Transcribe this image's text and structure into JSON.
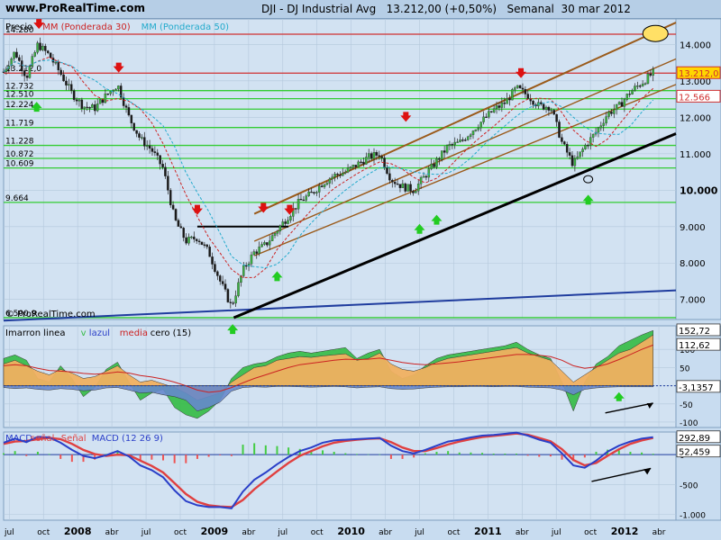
{
  "header": {
    "site": "www.ProRealTime.com",
    "ticker": "DJI - DJ Industrial Avg",
    "quote": "13.212,00 (+0,50%)",
    "period": "Semanal",
    "date": "30 mar 2012",
    "watermark": "© ProRealTime.com"
  },
  "colors": {
    "background": "#c8dcf0",
    "panel": "#ccdff0",
    "price_up": "#3cb043",
    "price_down": "#1a1a1a",
    "ma30": "#cc2222",
    "ma50": "#22aacc",
    "support_line": "#000000",
    "long_line": "#1f3c9e",
    "channel": "#9a5a1a",
    "resistance": "#d03030",
    "horizontal": "#33cc33",
    "arrow_up": "#22cc22",
    "arrow_down": "#dd1111",
    "volume_area": "#f0b060",
    "volume_green": "#33bb44",
    "volume_blue": "#6688cc",
    "macd_line": "#2a3fc8",
    "signal_line": "#e04040",
    "histogram_pos": "#44cc44",
    "histogram_neg": "#ee5555"
  },
  "chart_data": [
    {
      "type": "candlestick",
      "panel": "price",
      "legend": [
        {
          "label": "Precio",
          "color": "#000000"
        },
        {
          "label": "MM (Ponderada 30)",
          "color": "#cc2222"
        },
        {
          "label": "MM (Ponderada 50)",
          "color": "#22aacc"
        }
      ],
      "x_ticks": [
        {
          "label": "jul",
          "t": 0.5
        },
        {
          "label": "oct",
          "t": 3.5
        },
        {
          "label": "2008",
          "t": 6.5
        },
        {
          "label": "abr",
          "t": 9.5
        },
        {
          "label": "jul",
          "t": 12.5
        },
        {
          "label": "oct",
          "t": 15.5
        },
        {
          "label": "2009",
          "t": 18.5
        },
        {
          "label": "abr",
          "t": 21.5
        },
        {
          "label": "jul",
          "t": 24.5
        },
        {
          "label": "oct",
          "t": 27.5
        },
        {
          "label": "2010",
          "t": 30.5
        },
        {
          "label": "abr",
          "t": 33.5
        },
        {
          "label": "jul",
          "t": 36.5
        },
        {
          "label": "oct",
          "t": 39.5
        },
        {
          "label": "2011",
          "t": 42.5
        },
        {
          "label": "abr",
          "t": 45.5
        },
        {
          "label": "jul",
          "t": 48.5
        },
        {
          "label": "oct",
          "t": 51.5
        },
        {
          "label": "2012",
          "t": 54.5
        },
        {
          "label": "abr",
          "t": 57.5
        }
      ],
      "x_bold_ticks": [
        "2008",
        "2009",
        "2010",
        "2011",
        "2012"
      ],
      "x_range_months": [
        0,
        59
      ],
      "y_ticks": [
        7000,
        8000,
        9000,
        10000,
        11000,
        12000,
        13000,
        14000
      ],
      "y_tick_labels": [
        "7.000",
        "8.000",
        "9.000",
        "10.000",
        "11.000",
        "12.000",
        "13.000",
        "14.000"
      ],
      "y_range": [
        6450,
        14700
      ],
      "price_path_months": [
        0,
        1,
        2,
        3,
        4,
        5,
        6,
        7,
        8,
        9,
        10,
        11,
        12,
        13,
        14,
        15,
        16,
        17,
        18,
        19,
        20,
        21,
        22,
        23,
        24,
        25,
        26,
        27,
        28,
        29,
        30,
        31,
        32,
        33,
        34,
        35,
        36,
        37,
        38,
        39,
        40,
        41,
        42,
        43,
        44,
        45,
        46,
        47,
        48,
        49,
        50,
        51,
        52,
        53,
        54,
        55,
        56,
        57
      ],
      "price_path_values": [
        13250,
        13800,
        13100,
        14000,
        13700,
        13200,
        12650,
        12300,
        12250,
        12600,
        12900,
        12000,
        11400,
        11100,
        10600,
        9200,
        8600,
        8700,
        8300,
        7500,
        6800,
        7800,
        8300,
        8500,
        8900,
        9300,
        9700,
        9900,
        10200,
        10400,
        10500,
        10700,
        10900,
        11000,
        10300,
        10100,
        10000,
        10400,
        10800,
        11200,
        11300,
        11600,
        11900,
        12200,
        12400,
        12800,
        12600,
        12300,
        12300,
        11300,
        10700,
        11200,
        11600,
        12100,
        12300,
        12700,
        12950,
        13212
      ],
      "horizontal_levels": [
        {
          "value": 14280,
          "label": "14.280",
          "color": "#d03030"
        },
        {
          "value": 13212,
          "label": "13.212,0",
          "color": "#d03030"
        },
        {
          "value": 12732,
          "label": "12.732",
          "color": "#33cc33"
        },
        {
          "value": 12510,
          "label": "12.510",
          "color": "#33cc33"
        },
        {
          "value": 12224,
          "label": "12.224",
          "color": "#33cc33"
        },
        {
          "value": 11719,
          "label": "11.719",
          "color": "#33cc33"
        },
        {
          "value": 11228,
          "label": "11.228",
          "color": "#33cc33"
        },
        {
          "value": 10872,
          "label": "10.872",
          "color": "#33cc33"
        },
        {
          "value": 10609,
          "label": "10.609",
          "color": "#33cc33"
        },
        {
          "value": 9664,
          "label": "9.664",
          "color": "#33cc33"
        },
        {
          "value": 6500.9,
          "label": "6.500,9",
          "color": "#33cc33"
        }
      ],
      "right_labels": [
        {
          "value": 13212,
          "label": "13.212,0",
          "bg": "#ffd700"
        },
        {
          "value": 12566,
          "label": "12.566",
          "bg": "#ffffff"
        }
      ],
      "arrows_down": [
        {
          "t": 3.1,
          "value": 14500
        },
        {
          "t": 10.1,
          "value": 13300
        },
        {
          "t": 17.0,
          "value": 9400
        },
        {
          "t": 22.8,
          "value": 9450
        },
        {
          "t": 25.1,
          "value": 9400
        },
        {
          "t": 35.3,
          "value": 11950
        },
        {
          "t": 45.4,
          "value": 13150
        }
      ],
      "arrows_up": [
        {
          "t": 2.9,
          "value": 12350
        },
        {
          "t": 20.1,
          "value": 6250
        },
        {
          "t": 24.0,
          "value": 7700
        },
        {
          "t": 36.5,
          "value": 9000
        },
        {
          "t": 38.0,
          "value": 9250
        },
        {
          "t": 51.3,
          "value": 9800
        }
      ]
    },
    {
      "type": "area",
      "panel": "indicator",
      "title": "Imarron linea",
      "legend": [
        {
          "label": "Imarron linea",
          "color": "#000000"
        },
        {
          "label": "v",
          "color": "#33bb44"
        },
        {
          "label": "lazul",
          "color": "#2a3fc8"
        },
        {
          "label": "media",
          "color": "#cc2222"
        },
        {
          "label": "cero (15)",
          "color": "#000000"
        }
      ],
      "y_ticks": [
        100,
        50,
        0,
        -50,
        -100
      ],
      "y_tick_labels": [
        "100",
        "50",
        "0",
        "-50",
        "-100"
      ],
      "y_range": [
        -115,
        165
      ],
      "right_labels": [
        {
          "value": 152.72,
          "label": "152,72",
          "bg": "#ffffff"
        },
        {
          "value": 112.62,
          "label": "112,62",
          "bg": "#ffffff"
        },
        {
          "value": -3.1357,
          "label": "-3,1357",
          "bg": "#ffffff"
        }
      ],
      "orange_values": [
        60,
        70,
        55,
        40,
        30,
        45,
        35,
        20,
        25,
        40,
        55,
        30,
        10,
        15,
        5,
        -5,
        -20,
        -40,
        -30,
        -20,
        10,
        30,
        50,
        55,
        70,
        75,
        80,
        78,
        82,
        85,
        88,
        70,
        75,
        90,
        60,
        45,
        40,
        50,
        65,
        75,
        80,
        85,
        90,
        95,
        100,
        105,
        90,
        80,
        70,
        40,
        10,
        30,
        50,
        70,
        90,
        100,
        120,
        140
      ],
      "green_values": [
        75,
        85,
        70,
        20,
        10,
        55,
        20,
        -30,
        -5,
        45,
        65,
        10,
        -40,
        -20,
        -10,
        -60,
        -80,
        -90,
        -70,
        -40,
        20,
        50,
        60,
        65,
        80,
        90,
        95,
        90,
        95,
        100,
        105,
        75,
        90,
        100,
        40,
        20,
        30,
        55,
        75,
        85,
        90,
        95,
        100,
        105,
        110,
        120,
        100,
        85,
        75,
        10,
        -70,
        10,
        60,
        80,
        110,
        125,
        140,
        152
      ],
      "blue_values": [
        -5,
        -8,
        -6,
        -10,
        -12,
        -8,
        -10,
        -14,
        -12,
        -6,
        -5,
        -12,
        -20,
        -18,
        -25,
        -30,
        -40,
        -70,
        -60,
        -45,
        -15,
        -5,
        -3,
        -4,
        -2,
        -2,
        -3,
        -4,
        -3,
        -2,
        -3,
        -6,
        -4,
        -3,
        -8,
        -10,
        -9,
        -6,
        -4,
        -3,
        -3,
        -2,
        -2,
        -3,
        -2,
        -2,
        -4,
        -5,
        -6,
        -12,
        -25,
        -10,
        -6,
        -4,
        -3,
        -3,
        -3,
        -3
      ],
      "red_values": [
        55,
        58,
        55,
        48,
        42,
        40,
        38,
        34,
        32,
        34,
        38,
        35,
        28,
        24,
        18,
        10,
        0,
        -12,
        -18,
        -15,
        -5,
        8,
        20,
        30,
        40,
        50,
        58,
        62,
        66,
        70,
        73,
        72,
        73,
        76,
        70,
        64,
        60,
        58,
        60,
        63,
        66,
        70,
        74,
        78,
        82,
        86,
        86,
        84,
        80,
        70,
        55,
        48,
        52,
        60,
        72,
        86,
        100,
        112
      ]
    },
    {
      "type": "line",
      "panel": "macd",
      "title": "MACD (12 26 9)",
      "legend": [
        {
          "label": "MACD",
          "color": "#2a3fc8"
        },
        {
          "label": "señal",
          "color": "#e04040"
        },
        {
          "label": "Señal",
          "color": "#e04040"
        },
        {
          "label": "MACD (12 26 9)",
          "color": "#2a3fc8"
        }
      ],
      "y_ticks": [
        0,
        -500,
        -1000
      ],
      "y_tick_labels": [
        "0",
        "-500",
        "-1.000"
      ],
      "y_range": [
        -1100,
        380
      ],
      "right_labels": [
        {
          "value": 292.89,
          "label": "292,89",
          "bg": "#ffffff"
        },
        {
          "value": 52.459,
          "label": "52,459",
          "bg": "#ffffff"
        }
      ],
      "macd_values": [
        200,
        270,
        210,
        300,
        290,
        200,
        80,
        -20,
        -60,
        -10,
        60,
        -30,
        -180,
        -260,
        -380,
        -600,
        -780,
        -850,
        -880,
        -880,
        -900,
        -620,
        -420,
        -300,
        -160,
        -40,
        60,
        120,
        200,
        240,
        250,
        260,
        270,
        280,
        150,
        60,
        20,
        80,
        150,
        220,
        250,
        290,
        320,
        330,
        350,
        370,
        320,
        250,
        200,
        20,
        -180,
        -220,
        -100,
        50,
        150,
        220,
        270,
        293
      ],
      "signal_values": [
        180,
        220,
        230,
        260,
        280,
        260,
        180,
        80,
        10,
        -20,
        0,
        -10,
        -100,
        -190,
        -300,
        -480,
        -660,
        -790,
        -850,
        -870,
        -880,
        -760,
        -580,
        -430,
        -280,
        -140,
        -20,
        60,
        140,
        200,
        230,
        250,
        265,
        275,
        210,
        120,
        60,
        60,
        110,
        170,
        220,
        260,
        295,
        315,
        335,
        355,
        335,
        280,
        225,
        90,
        -90,
        -180,
        -140,
        -20,
        90,
        180,
        240,
        280
      ]
    }
  ]
}
